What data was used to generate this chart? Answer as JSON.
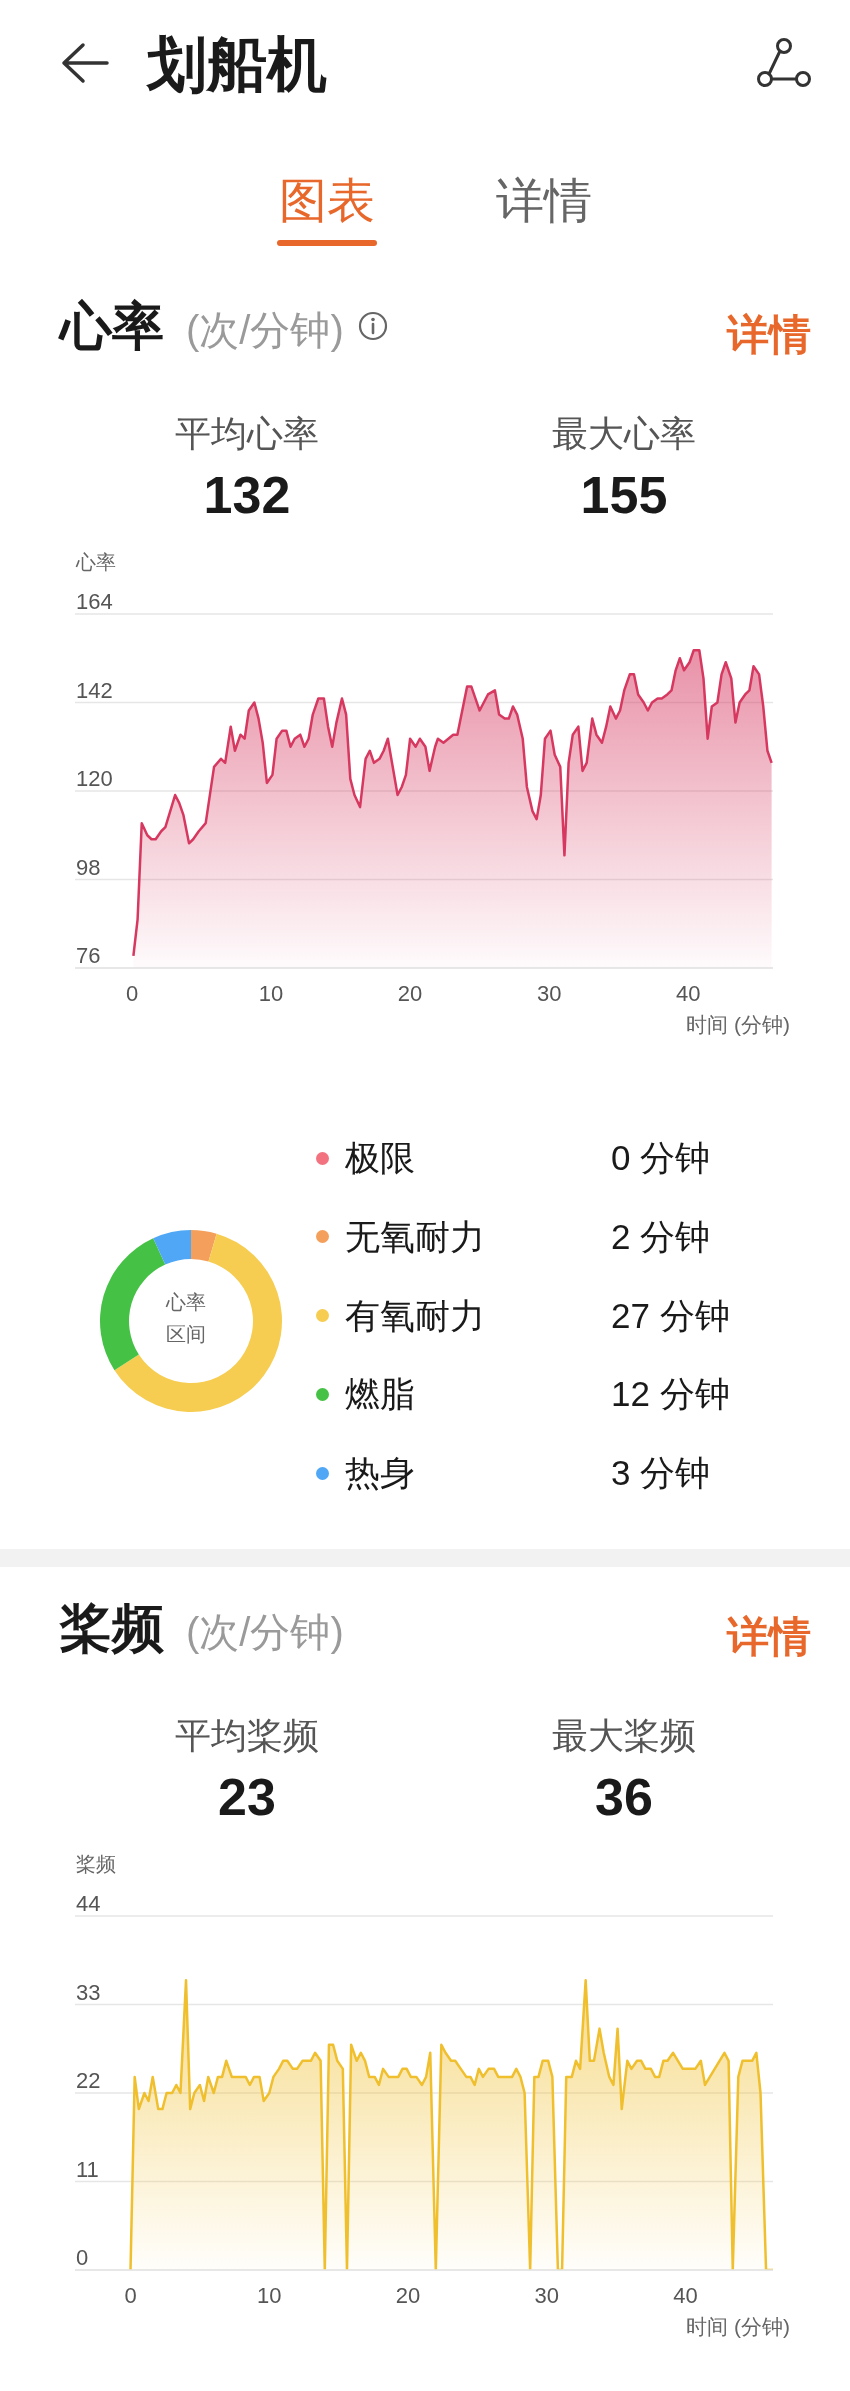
{
  "chart_data": [
    {
      "type": "area",
      "title": "心率",
      "subtitle": "(次/分钟)",
      "ylabel": "心率",
      "xlabel": "时间 (分钟)",
      "annotations": [
        "划船机",
        "图表",
        "详情",
        "详情",
        "平均心率",
        "132",
        "最大心率",
        "155"
      ],
      "x": [
        0.1,
        0.4,
        0.7,
        1.1,
        1.4,
        1.7,
        2.1,
        2.4,
        3.1,
        3.4,
        3.7,
        4.1,
        4.4,
        4.8,
        5.3,
        5.9,
        6.4,
        6.7,
        7.1,
        7.4,
        7.8,
        8.1,
        8.4,
        8.8,
        9.1,
        9.4,
        9.7,
        10.1,
        10.4,
        10.8,
        11.1,
        11.4,
        11.7,
        12.1,
        12.4,
        12.7,
        13.0,
        13.4,
        13.8,
        14.1,
        14.4,
        14.7,
        15.1,
        15.4,
        15.7,
        16.0,
        16.4,
        16.8,
        17.1,
        17.4,
        17.8,
        18.1,
        18.4,
        19.1,
        19.4,
        19.7,
        20.0,
        20.4,
        20.7,
        21.1,
        21.4,
        21.8,
        22.0,
        22.4,
        23.1,
        23.4,
        24.1,
        24.4,
        25.0,
        25.6,
        26.1,
        26.4,
        26.8,
        27.1,
        27.4,
        27.7,
        28.1,
        28.4,
        28.8,
        29.1,
        29.4,
        29.7,
        30.1,
        30.4,
        30.8,
        31.1,
        31.4,
        31.7,
        32.1,
        32.4,
        32.7,
        33.1,
        33.4,
        33.8,
        34.1,
        34.4,
        34.8,
        35.1,
        35.4,
        35.8,
        36.1,
        36.4,
        36.8,
        37.1,
        37.4,
        37.8,
        38.1,
        38.5,
        38.8,
        39.1,
        39.4,
        39.7,
        40.1,
        40.4,
        40.8,
        41.1,
        41.4,
        41.7,
        42.1,
        42.4,
        42.7,
        43.1,
        43.4,
        43.7,
        44.1,
        44.4,
        44.7,
        45.1,
        45.4,
        45.7,
        46.0
      ],
      "values": [
        79,
        88,
        112,
        109,
        108,
        108,
        110,
        111,
        119,
        117,
        114,
        107,
        108,
        110,
        112,
        126,
        128,
        127,
        136,
        130,
        134,
        133,
        140,
        142,
        138,
        132,
        122,
        124,
        133,
        135,
        135,
        131,
        133,
        134,
        131,
        133,
        139,
        143,
        143,
        136,
        131,
        137,
        143,
        139,
        123,
        119,
        116,
        128,
        130,
        127,
        128,
        130,
        133,
        119,
        121,
        124,
        133,
        131,
        133,
        131,
        125,
        131,
        133,
        132,
        134,
        134,
        146,
        146,
        140,
        144,
        145,
        139,
        138,
        138,
        141,
        139,
        133,
        121,
        115,
        113,
        119,
        133,
        135,
        129,
        126,
        104,
        127,
        134,
        136,
        125,
        127,
        138,
        134,
        132,
        136,
        141,
        138,
        140,
        145,
        149,
        149,
        144,
        142,
        140,
        142,
        143,
        143,
        144,
        145,
        150,
        153,
        150,
        152,
        155,
        155,
        148,
        133,
        141,
        142,
        149,
        152,
        148,
        137,
        142,
        144,
        145,
        151,
        149,
        141,
        130,
        127
      ],
      "color": "#d63860",
      "xlim": [
        -4.1,
        46.1
      ],
      "xticks": [
        0,
        10,
        20,
        30,
        40
      ],
      "ylim": [
        76,
        164
      ],
      "yticks": [
        76,
        98,
        120,
        142,
        164
      ],
      "grid": "y"
    },
    {
      "type": "donut",
      "title": "心率区间",
      "categories": [
        "极限",
        "无氧耐力",
        "有氧耐力",
        "燃脂",
        "热身"
      ],
      "values": [
        0,
        2,
        27,
        12,
        3
      ],
      "colors": [
        "#f2737f",
        "#f4a05c",
        "#f6cd50",
        "#45c245",
        "#4fa7f5"
      ],
      "value_labels": [
        "0 分钟",
        "2 分钟",
        "27 分钟",
        "12 分钟",
        "3 分钟"
      ],
      "legend": "right"
    },
    {
      "type": "area",
      "title": "桨频",
      "subtitle": "(次/分钟)",
      "ylabel": "桨频",
      "xlabel": "时间 (分钟)",
      "annotations": [
        "详情",
        "平均桨频",
        "23",
        "最大桨频",
        "36"
      ],
      "x": [
        0.0,
        0.3,
        0.6,
        1.0,
        1.3,
        1.6,
        2.0,
        2.3,
        2.6,
        3.0,
        3.3,
        3.6,
        4.0,
        4.3,
        4.6,
        5.0,
        5.3,
        5.6,
        6.0,
        6.3,
        6.6,
        6.9,
        7.3,
        7.7,
        8.3,
        8.6,
        8.9,
        9.3,
        9.6,
        10.0,
        10.3,
        10.7,
        11.0,
        11.3,
        11.7,
        12.0,
        12.4,
        13.0,
        13.3,
        13.7,
        14.0,
        14.3,
        14.6,
        14.9,
        15.3,
        15.6,
        15.9,
        16.3,
        16.6,
        16.9,
        17.2,
        17.6,
        17.9,
        18.2,
        18.6,
        19.3,
        19.6,
        19.9,
        20.2,
        20.6,
        21.0,
        21.3,
        21.6,
        22.0,
        22.4,
        22.7,
        23.1,
        23.4,
        23.8,
        24.2,
        24.5,
        24.8,
        25.1,
        25.4,
        25.8,
        26.2,
        26.5,
        27.5,
        27.8,
        28.1,
        28.4,
        28.8,
        29.1,
        29.4,
        29.7,
        30.1,
        30.4,
        30.8,
        31.1,
        31.4,
        31.8,
        32.1,
        32.4,
        32.8,
        33.1,
        33.4,
        33.8,
        34.1,
        34.5,
        34.8,
        35.1,
        35.4,
        35.8,
        36.1,
        36.5,
        36.8,
        37.1,
        37.5,
        37.8,
        38.1,
        38.4,
        38.7,
        39.1,
        39.8,
        40.7,
        41.1,
        41.4,
        42.8,
        43.1,
        43.4,
        43.8,
        44.1,
        44.8,
        45.1,
        45.4,
        45.8,
        46.3
      ],
      "values": [
        0,
        24,
        20,
        22,
        21,
        24,
        20,
        20,
        22,
        22,
        23,
        22,
        36,
        20,
        22,
        23,
        21,
        24,
        22,
        24,
        24,
        26,
        24,
        24,
        24,
        23,
        24,
        24,
        21,
        22,
        24,
        25,
        26,
        26,
        25,
        25,
        26,
        26,
        27,
        26,
        0,
        28,
        28,
        26,
        25,
        0,
        28,
        26,
        27,
        26,
        24,
        24,
        23,
        25,
        24,
        24,
        25,
        25,
        24,
        24,
        23,
        24,
        27,
        0,
        28,
        27,
        26,
        26,
        25,
        24,
        24,
        23,
        25,
        24,
        25,
        25,
        24,
        24,
        25,
        24,
        22,
        0,
        24,
        24,
        26,
        26,
        24,
        0,
        0,
        24,
        24,
        26,
        25,
        36,
        26,
        26,
        30,
        27,
        24,
        23,
        30,
        20,
        26,
        25,
        26,
        26,
        25,
        25,
        24,
        24,
        26,
        26,
        27,
        25,
        25,
        26,
        23,
        27,
        26,
        0,
        24,
        26,
        26,
        27,
        22,
        0,
        0
      ],
      "color": "#f0bf2e",
      "xlim": [
        -4,
        46.3
      ],
      "xticks": [
        0,
        10,
        20,
        30,
        40
      ],
      "ylim": [
        0,
        44
      ],
      "yticks": [
        0,
        11,
        22,
        33,
        44
      ],
      "grid": "y"
    }
  ]
}
